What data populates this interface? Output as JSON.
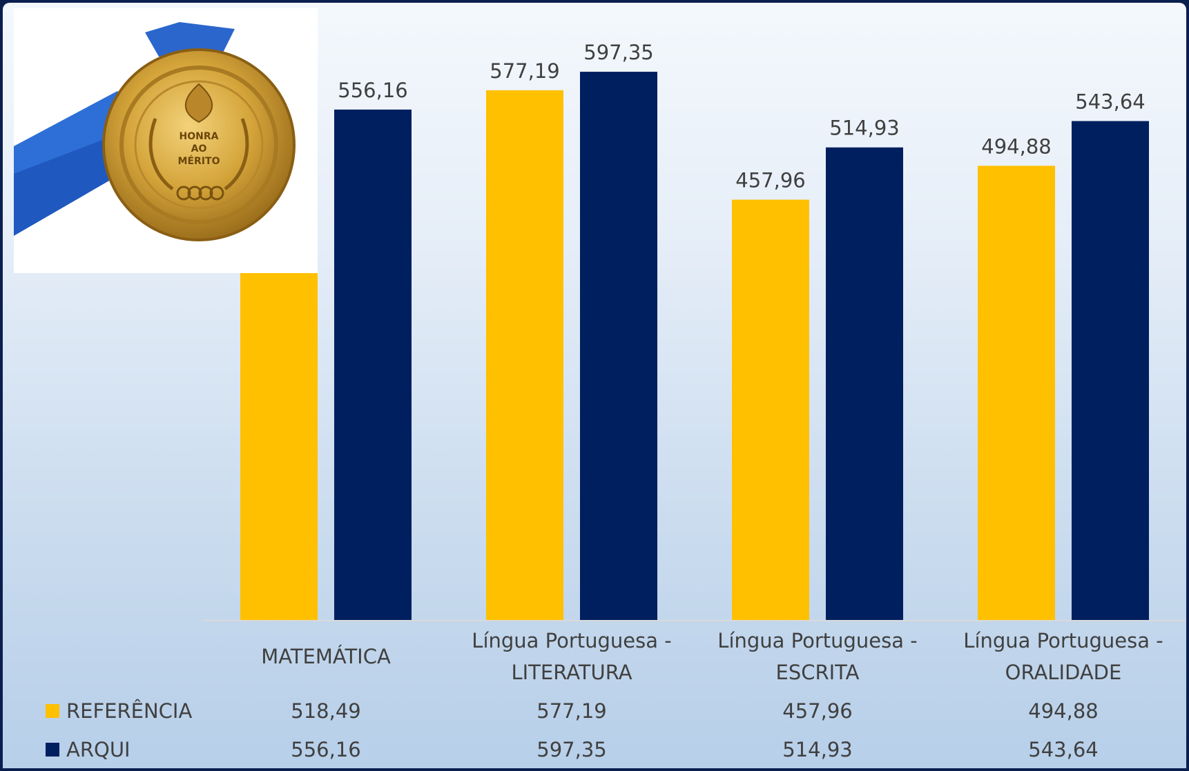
{
  "chart_data": {
    "type": "bar",
    "categories": [
      [
        "MATEMÁTICA"
      ],
      [
        "Língua Portuguesa -",
        "LITERATURA"
      ],
      [
        "Língua Portuguesa -",
        "ESCRITA"
      ],
      [
        "Língua Portuguesa -",
        "ORALIDADE"
      ]
    ],
    "series": [
      {
        "name": "REFERÊNCIA",
        "color": "#ffc000",
        "values": [
          518.49,
          577.19,
          457.96,
          494.88
        ],
        "labels": [
          "518,49",
          "577,19",
          "457,96",
          "494,88"
        ]
      },
      {
        "name": "ARQUI",
        "color": "#001f5f",
        "values": [
          556.16,
          597.35,
          514.93,
          543.64
        ],
        "labels": [
          "556,16",
          "597,35",
          "514,93",
          "543,64"
        ]
      }
    ],
    "ylim": [
      0,
      650
    ],
    "grid": false,
    "legend": "data-table",
    "title": "",
    "xlabel": "",
    "ylabel": ""
  },
  "image": {
    "type": "medal",
    "medal_text": [
      "HONRA",
      "AO",
      "MÉRITO"
    ],
    "ribbon_color": "#2d6fd6",
    "gold_color": "#c99a2e"
  }
}
